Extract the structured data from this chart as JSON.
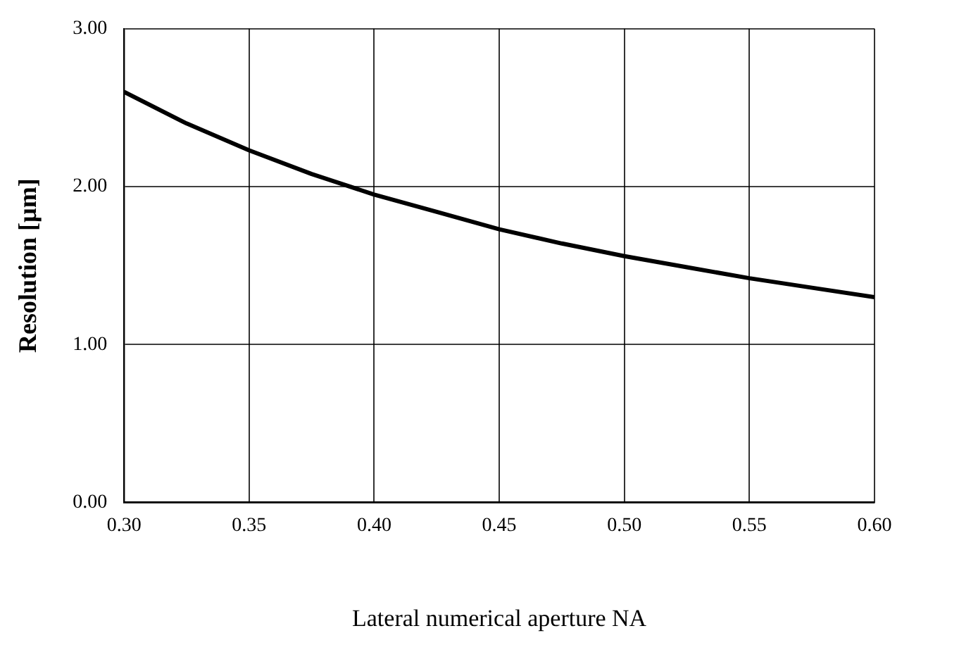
{
  "chart_data": {
    "type": "line",
    "xlabel": "Lateral numerical aperture NA",
    "ylabel": "Resolution [µm]",
    "x": [
      0.3,
      0.325,
      0.35,
      0.375,
      0.4,
      0.425,
      0.45,
      0.475,
      0.5,
      0.525,
      0.55,
      0.575,
      0.6
    ],
    "series": [
      {
        "color": "#000000",
        "values": [
          2.6,
          2.4,
          2.23,
          2.08,
          1.95,
          1.84,
          1.73,
          1.64,
          1.56,
          1.49,
          1.42,
          1.36,
          1.3
        ]
      }
    ],
    "xlim": [
      0.3,
      0.6
    ],
    "xticks": [
      {
        "value": 0.3,
        "label": "0.30"
      },
      {
        "value": 0.35,
        "label": "0.35"
      },
      {
        "value": 0.4,
        "label": "0.40"
      },
      {
        "value": 0.45,
        "label": "0.45"
      },
      {
        "value": 0.5,
        "label": "0.50"
      },
      {
        "value": 0.55,
        "label": "0.55"
      },
      {
        "value": 0.6,
        "label": "0.60"
      }
    ],
    "ylim": [
      0,
      3
    ],
    "yticks": [
      {
        "value": 0,
        "label": "0.00"
      },
      {
        "value": 1,
        "label": "1.00"
      },
      {
        "value": 2,
        "label": "2.00"
      },
      {
        "value": 3,
        "label": "3.00"
      }
    ],
    "grid": true,
    "legend": false,
    "marker": "none",
    "line_style": "solid"
  }
}
